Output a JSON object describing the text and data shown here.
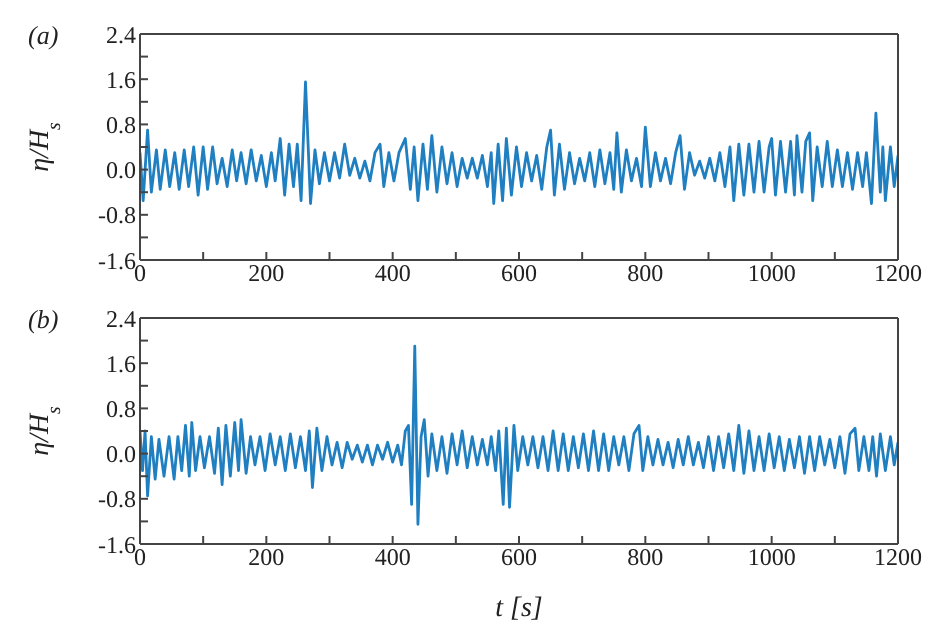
{
  "chart_data": [
    {
      "type": "line",
      "ylabel": "η/H$_{s}$",
      "annotations": [
        "(a)"
      ],
      "marker": "none",
      "xlim": [
        0,
        1200
      ],
      "xticks": [
        0,
        {
          "value": 100,
          "label": null
        },
        200,
        {
          "value": 300,
          "label": null
        },
        400,
        {
          "value": 500,
          "label": null
        },
        600,
        {
          "value": 700,
          "label": null
        },
        800,
        {
          "value": 900,
          "label": null
        },
        1000,
        {
          "value": 1100,
          "label": null
        },
        1200
      ],
      "ylim": [
        -1.6,
        2.4
      ],
      "yticks": [
        -1.6,
        {
          "value": -1.2,
          "label": null
        },
        -0.8,
        {
          "value": -0.4,
          "label": null
        },
        {
          "value": 0,
          "label": "0.0"
        },
        {
          "value": 0.4,
          "label": null
        },
        0.8,
        {
          "value": 1.2,
          "label": null
        },
        1.6,
        {
          "value": 2.0,
          "label": null
        },
        2.4
      ],
      "series": [
        {
          "color": "#1f7fc0",
          "x": [
            0,
            5,
            12,
            18,
            26,
            32,
            40,
            47,
            55,
            62,
            70,
            77,
            85,
            92,
            100,
            107,
            115,
            122,
            130,
            138,
            146,
            153,
            160,
            168,
            176,
            184,
            192,
            200,
            208,
            214,
            222,
            229,
            236,
            243,
            249,
            255,
            262,
            270,
            277,
            284,
            292,
            300,
            308,
            316,
            324,
            332,
            340,
            348,
            356,
            364,
            372,
            380,
            386,
            394,
            402,
            410,
            420,
            428,
            434,
            440,
            448,
            455,
            462,
            470,
            478,
            486,
            494,
            502,
            510,
            518,
            526,
            534,
            542,
            550,
            556,
            560,
            567,
            574,
            580,
            588,
            596,
            604,
            612,
            620,
            628,
            636,
            644,
            650,
            656,
            664,
            672,
            680,
            688,
            696,
            704,
            712,
            720,
            728,
            736,
            744,
            750,
            755,
            762,
            770,
            778,
            786,
            794,
            800,
            808,
            816,
            824,
            832,
            840,
            848,
            855,
            862,
            870,
            878,
            886,
            894,
            902,
            910,
            918,
            926,
            934,
            940,
            948,
            956,
            964,
            972,
            980,
            988,
            996,
            1000,
            1006,
            1014,
            1022,
            1030,
            1036,
            1040,
            1048,
            1054,
            1060,
            1065,
            1072,
            1080,
            1088,
            1096,
            1104,
            1112,
            1120,
            1128,
            1136,
            1144,
            1150,
            1158,
            1165,
            1172,
            1176,
            1180,
            1188,
            1194,
            1200
          ],
          "values": [
            0.3,
            -0.55,
            0.7,
            -0.4,
            0.35,
            -0.35,
            0.35,
            -0.3,
            0.3,
            -0.35,
            0.35,
            -0.3,
            0.4,
            -0.45,
            0.4,
            -0.35,
            0.4,
            -0.25,
            0.2,
            -0.3,
            0.35,
            -0.2,
            0.3,
            -0.25,
            0.35,
            -0.2,
            0.25,
            -0.3,
            0.3,
            -0.2,
            0.55,
            -0.45,
            0.45,
            -0.3,
            0.45,
            -0.55,
            1.55,
            -0.6,
            0.35,
            -0.25,
            0.3,
            -0.2,
            0.3,
            -0.15,
            0.45,
            -0.1,
            0.2,
            -0.15,
            0.15,
            -0.2,
            0.3,
            0.45,
            -0.3,
            0.3,
            -0.2,
            0.3,
            0.55,
            -0.35,
            0.4,
            -0.55,
            0.45,
            -0.35,
            0.6,
            -0.4,
            0.4,
            -0.25,
            0.3,
            -0.3,
            0.2,
            -0.15,
            0.2,
            -0.15,
            0.25,
            -0.3,
            0.3,
            -0.6,
            0.45,
            -0.55,
            0.55,
            -0.45,
            0.4,
            -0.3,
            0.3,
            -0.2,
            0.25,
            -0.35,
            0.4,
            0.7,
            -0.45,
            0.45,
            -0.35,
            0.3,
            -0.25,
            0.2,
            -0.2,
            0.3,
            -0.3,
            0.35,
            -0.25,
            0.3,
            -0.35,
            0.65,
            -0.4,
            0.35,
            -0.2,
            0.2,
            -0.3,
            0.75,
            -0.3,
            0.3,
            -0.2,
            0.2,
            -0.25,
            0.3,
            0.6,
            -0.35,
            0.3,
            -0.1,
            0.15,
            -0.15,
            0.2,
            -0.2,
            0.3,
            -0.3,
            0.4,
            -0.55,
            0.45,
            -0.45,
            0.45,
            -0.4,
            0.5,
            -0.4,
            0.4,
            0.55,
            -0.45,
            0.5,
            -0.4,
            0.5,
            -0.45,
            0.6,
            -0.4,
            0.5,
            0.65,
            -0.55,
            0.4,
            -0.3,
            0.5,
            -0.3,
            0.35,
            -0.3,
            0.3,
            -0.35,
            0.3,
            -0.3,
            0.3,
            -0.6,
            1.0,
            -0.4,
            0.4,
            -0.55,
            0.4,
            -0.3,
            0.25
          ]
        }
      ]
    },
    {
      "type": "line",
      "ylabel": "η/H$_{s}$",
      "xlabel": "t [s]",
      "annotations": [
        "(b)"
      ],
      "marker": "none",
      "xlim": [
        0,
        1200
      ],
      "xticks": [
        0,
        {
          "value": 100,
          "label": null
        },
        200,
        {
          "value": 300,
          "label": null
        },
        400,
        {
          "value": 500,
          "label": null
        },
        600,
        {
          "value": 700,
          "label": null
        },
        800,
        {
          "value": 900,
          "label": null
        },
        1000,
        {
          "value": 1100,
          "label": null
        },
        1200
      ],
      "ylim": [
        -1.6,
        2.4
      ],
      "yticks": [
        -1.6,
        {
          "value": -1.2,
          "label": null
        },
        -0.8,
        {
          "value": -0.4,
          "label": null
        },
        {
          "value": 0,
          "label": "0.0"
        },
        {
          "value": 0.4,
          "label": null
        },
        0.8,
        {
          "value": 1.2,
          "label": null
        },
        1.6,
        {
          "value": 2.0,
          "label": null
        },
        2.4
      ],
      "series": [
        {
          "color": "#1f7fc0",
          "x": [
            0,
            4,
            8,
            12,
            18,
            24,
            30,
            38,
            46,
            54,
            60,
            66,
            72,
            78,
            82,
            88,
            95,
            102,
            110,
            118,
            124,
            130,
            136,
            143,
            150,
            156,
            160,
            168,
            175,
            182,
            190,
            198,
            206,
            214,
            222,
            230,
            238,
            246,
            254,
            262,
            268,
            273,
            280,
            288,
            296,
            304,
            312,
            320,
            328,
            336,
            344,
            352,
            360,
            368,
            376,
            384,
            392,
            400,
            408,
            414,
            420,
            425,
            430,
            435,
            440,
            445,
            450,
            456,
            462,
            470,
            478,
            486,
            494,
            502,
            510,
            518,
            526,
            534,
            542,
            550,
            556,
            563,
            568,
            575,
            580,
            585,
            592,
            598,
            606,
            614,
            622,
            630,
            638,
            646,
            654,
            662,
            670,
            678,
            686,
            694,
            702,
            710,
            718,
            726,
            734,
            742,
            750,
            758,
            766,
            774,
            782,
            790,
            796,
            804,
            812,
            820,
            828,
            836,
            844,
            852,
            860,
            868,
            876,
            884,
            892,
            900,
            908,
            916,
            924,
            932,
            940,
            948,
            956,
            964,
            972,
            980,
            988,
            996,
            1004,
            1012,
            1020,
            1028,
            1036,
            1044,
            1052,
            1060,
            1068,
            1076,
            1084,
            1092,
            1100,
            1108,
            1116,
            1124,
            1132,
            1138,
            1146,
            1154,
            1160,
            1166,
            1172,
            1180,
            1188,
            1194,
            1200
          ],
          "values": [
            0.4,
            -0.3,
            0.4,
            -0.75,
            0.3,
            -0.45,
            0.25,
            -0.4,
            0.3,
            -0.45,
            0.3,
            -0.3,
            0.5,
            -0.4,
            0.55,
            -0.3,
            0.3,
            -0.25,
            0.3,
            -0.35,
            0.45,
            -0.55,
            0.5,
            -0.4,
            0.55,
            -0.3,
            0.6,
            -0.35,
            0.3,
            -0.2,
            0.3,
            -0.3,
            0.35,
            -0.2,
            0.3,
            -0.3,
            0.35,
            -0.25,
            0.3,
            -0.3,
            0.4,
            -0.6,
            0.45,
            -0.3,
            0.3,
            -0.2,
            0.2,
            -0.25,
            0.2,
            -0.1,
            0.15,
            -0.15,
            0.15,
            -0.2,
            0.15,
            -0.1,
            0.2,
            -0.15,
            0.15,
            -0.2,
            0.4,
            0.5,
            -0.9,
            1.9,
            -1.25,
            0.3,
            0.6,
            -0.4,
            0.35,
            -0.3,
            0.3,
            -0.35,
            0.35,
            -0.2,
            0.4,
            -0.25,
            0.3,
            -0.2,
            0.25,
            -0.2,
            0.3,
            -0.3,
            0.4,
            -0.9,
            0.45,
            -0.95,
            0.5,
            -0.3,
            0.3,
            -0.2,
            0.3,
            -0.25,
            0.3,
            -0.3,
            0.4,
            -0.3,
            0.35,
            -0.3,
            0.3,
            -0.25,
            0.35,
            -0.3,
            0.4,
            -0.3,
            0.35,
            -0.3,
            0.3,
            -0.2,
            0.3,
            -0.3,
            0.35,
            0.5,
            -0.3,
            0.3,
            -0.2,
            0.25,
            -0.2,
            0.2,
            -0.25,
            0.25,
            -0.2,
            0.3,
            -0.2,
            0.2,
            -0.25,
            0.3,
            -0.3,
            0.3,
            -0.25,
            0.35,
            -0.3,
            0.5,
            -0.35,
            0.4,
            -0.3,
            0.3,
            -0.3,
            0.35,
            -0.25,
            0.3,
            -0.3,
            0.25,
            -0.25,
            0.3,
            -0.35,
            0.3,
            -0.3,
            0.3,
            -0.2,
            0.25,
            -0.25,
            0.3,
            -0.35,
            0.35,
            0.45,
            -0.3,
            0.3,
            -0.3,
            0.3,
            -0.4,
            0.35,
            -0.3,
            0.3,
            -0.2,
            0.2
          ]
        }
      ]
    }
  ]
}
